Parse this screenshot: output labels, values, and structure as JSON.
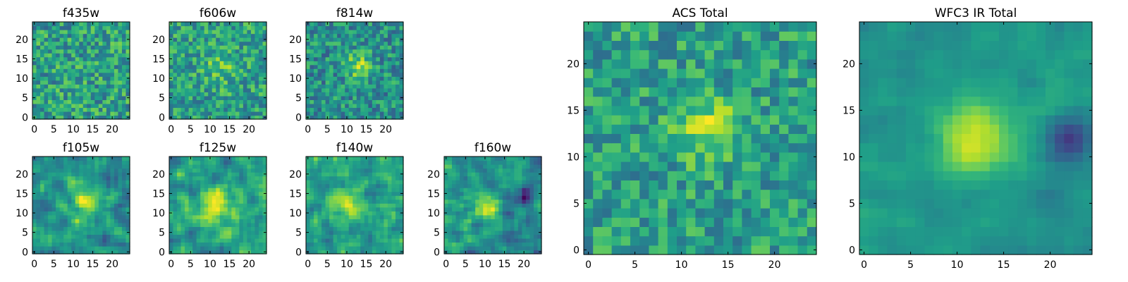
{
  "chart_data": [
    {
      "type": "heatmap",
      "title": "f435w",
      "colormap": "viridis",
      "grid_size": [
        25,
        25
      ],
      "xlim": [
        -0.5,
        24.5
      ],
      "ylim": [
        -0.5,
        24.5
      ],
      "xticks": [
        0,
        5,
        10,
        15,
        20
      ],
      "yticks": [
        0,
        5,
        10,
        15,
        20
      ],
      "xtick_labels": [
        "0",
        "5",
        "10",
        "15",
        "20"
      ],
      "ytick_labels": [
        "0",
        "5",
        "10",
        "15",
        "20"
      ],
      "source": {
        "seed": 11,
        "noise": 0.24,
        "peak": 0.0,
        "cx": 12,
        "cy": 12,
        "sigma": 3.5,
        "smooth": 0,
        "base": 0.56
      }
    },
    {
      "type": "heatmap",
      "title": "f606w",
      "colormap": "viridis",
      "grid_size": [
        25,
        25
      ],
      "xlim": [
        -0.5,
        24.5
      ],
      "ylim": [
        -0.5,
        24.5
      ],
      "xticks": [
        0,
        5,
        10,
        15,
        20
      ],
      "yticks": [
        0,
        5,
        10,
        15,
        20
      ],
      "xtick_labels": [
        "0",
        "5",
        "10",
        "15",
        "20"
      ],
      "ytick_labels": [
        "0",
        "5",
        "10",
        "15",
        "20"
      ],
      "source": {
        "seed": 23,
        "noise": 0.22,
        "peak": 0.18,
        "cx": 13,
        "cy": 13,
        "sigma": 3.0,
        "smooth": 0,
        "base": 0.56
      }
    },
    {
      "type": "heatmap",
      "title": "f814w",
      "colormap": "viridis",
      "grid_size": [
        25,
        25
      ],
      "xlim": [
        -0.5,
        24.5
      ],
      "ylim": [
        -0.5,
        24.5
      ],
      "xticks": [
        0,
        5,
        10,
        15,
        20
      ],
      "yticks": [
        0,
        5,
        10,
        15,
        20
      ],
      "xtick_labels": [
        "0",
        "5",
        "10",
        "15",
        "20"
      ],
      "ytick_labels": [
        "0",
        "5",
        "10",
        "15",
        "20"
      ],
      "source": {
        "seed": 37,
        "noise": 0.22,
        "peak": 0.36,
        "cx": 13,
        "cy": 13,
        "sigma": 2.2,
        "smooth": 0,
        "base": 0.5
      }
    },
    {
      "type": "heatmap",
      "title": "f105w",
      "colormap": "viridis",
      "grid_size": [
        25,
        25
      ],
      "xlim": [
        -0.5,
        24.5
      ],
      "ylim": [
        -0.5,
        24.5
      ],
      "xticks": [
        0,
        5,
        10,
        15,
        20
      ],
      "yticks": [
        0,
        5,
        10,
        15,
        20
      ],
      "xtick_labels": [
        "0",
        "5",
        "10",
        "15",
        "20"
      ],
      "ytick_labels": [
        "0",
        "5",
        "10",
        "15",
        "20"
      ],
      "source": {
        "seed": 41,
        "noise": 0.42,
        "peak": 0.4,
        "cx": 13,
        "cy": 12,
        "sigma": 2.8,
        "smooth": 1,
        "base": 0.5
      }
    },
    {
      "type": "heatmap",
      "title": "f125w",
      "colormap": "viridis",
      "grid_size": [
        25,
        25
      ],
      "xlim": [
        -0.5,
        24.5
      ],
      "ylim": [
        -0.5,
        24.5
      ],
      "xticks": [
        0,
        5,
        10,
        15,
        20
      ],
      "yticks": [
        0,
        5,
        10,
        15,
        20
      ],
      "xtick_labels": [
        "0",
        "5",
        "10",
        "15",
        "20"
      ],
      "ytick_labels": [
        "0",
        "5",
        "10",
        "15",
        "20"
      ],
      "source": {
        "seed": 53,
        "noise": 0.4,
        "peak": 0.36,
        "cx": 11,
        "cy": 11,
        "sigma": 3.2,
        "smooth": 1,
        "base": 0.56
      }
    },
    {
      "type": "heatmap",
      "title": "f140w",
      "colormap": "viridis",
      "grid_size": [
        25,
        25
      ],
      "xlim": [
        -0.5,
        24.5
      ],
      "ylim": [
        -0.5,
        24.5
      ],
      "xticks": [
        0,
        5,
        10,
        15,
        20
      ],
      "yticks": [
        0,
        5,
        10,
        15,
        20
      ],
      "xtick_labels": [
        "0",
        "5",
        "10",
        "15",
        "20"
      ],
      "ytick_labels": [
        "0",
        "5",
        "10",
        "15",
        "20"
      ],
      "source": {
        "seed": 67,
        "noise": 0.42,
        "peak": 0.34,
        "cx": 11,
        "cy": 12,
        "sigma": 3.0,
        "smooth": 1,
        "base": 0.56
      }
    },
    {
      "type": "heatmap",
      "title": "f160w",
      "colormap": "viridis",
      "grid_size": [
        25,
        25
      ],
      "xlim": [
        -0.5,
        24.5
      ],
      "ylim": [
        -0.5,
        24.5
      ],
      "xticks": [
        0,
        5,
        10,
        15,
        20
      ],
      "yticks": [
        0,
        5,
        10,
        15,
        20
      ],
      "xtick_labels": [
        "0",
        "5",
        "10",
        "15",
        "20"
      ],
      "ytick_labels": [
        "0",
        "5",
        "10",
        "15",
        "20"
      ],
      "source": {
        "seed": 79,
        "noise": 0.4,
        "peak": 0.42,
        "cx": 11,
        "cy": 12,
        "sigma": 2.6,
        "smooth": 1,
        "base": 0.5,
        "dark_x": 21,
        "dark_y": 14
      }
    },
    {
      "type": "heatmap",
      "title": "ACS Total",
      "colormap": "viridis",
      "grid_size": [
        25,
        25
      ],
      "xlim": [
        -0.5,
        24.5
      ],
      "ylim": [
        -0.5,
        24.5
      ],
      "xticks": [
        0,
        5,
        10,
        15,
        20
      ],
      "yticks": [
        0,
        5,
        10,
        15,
        20
      ],
      "xtick_labels": [
        "0",
        "5",
        "10",
        "15",
        "20"
      ],
      "ytick_labels": [
        "0",
        "5",
        "10",
        "15",
        "20"
      ],
      "source": {
        "seed": 97,
        "noise": 0.2,
        "peak": 0.32,
        "cx": 13,
        "cy": 13,
        "sigma": 2.4,
        "smooth": 0,
        "base": 0.56
      }
    },
    {
      "type": "heatmap",
      "title": "WFC3 IR Total",
      "colormap": "viridis",
      "grid_size": [
        25,
        25
      ],
      "xlim": [
        -0.5,
        24.5
      ],
      "ylim": [
        -0.5,
        24.5
      ],
      "xticks": [
        0,
        5,
        10,
        15,
        20
      ],
      "yticks": [
        0,
        5,
        10,
        15,
        20
      ],
      "xtick_labels": [
        "0",
        "5",
        "10",
        "15",
        "20"
      ],
      "ytick_labels": [
        "0",
        "5",
        "10",
        "15",
        "20"
      ],
      "source": {
        "seed": 109,
        "noise": 0.14,
        "peak": 0.42,
        "cx": 12,
        "cy": 12,
        "sigma": 3.0,
        "smooth": 1,
        "base": 0.52,
        "dark_x": 22,
        "dark_y": 12
      }
    }
  ]
}
